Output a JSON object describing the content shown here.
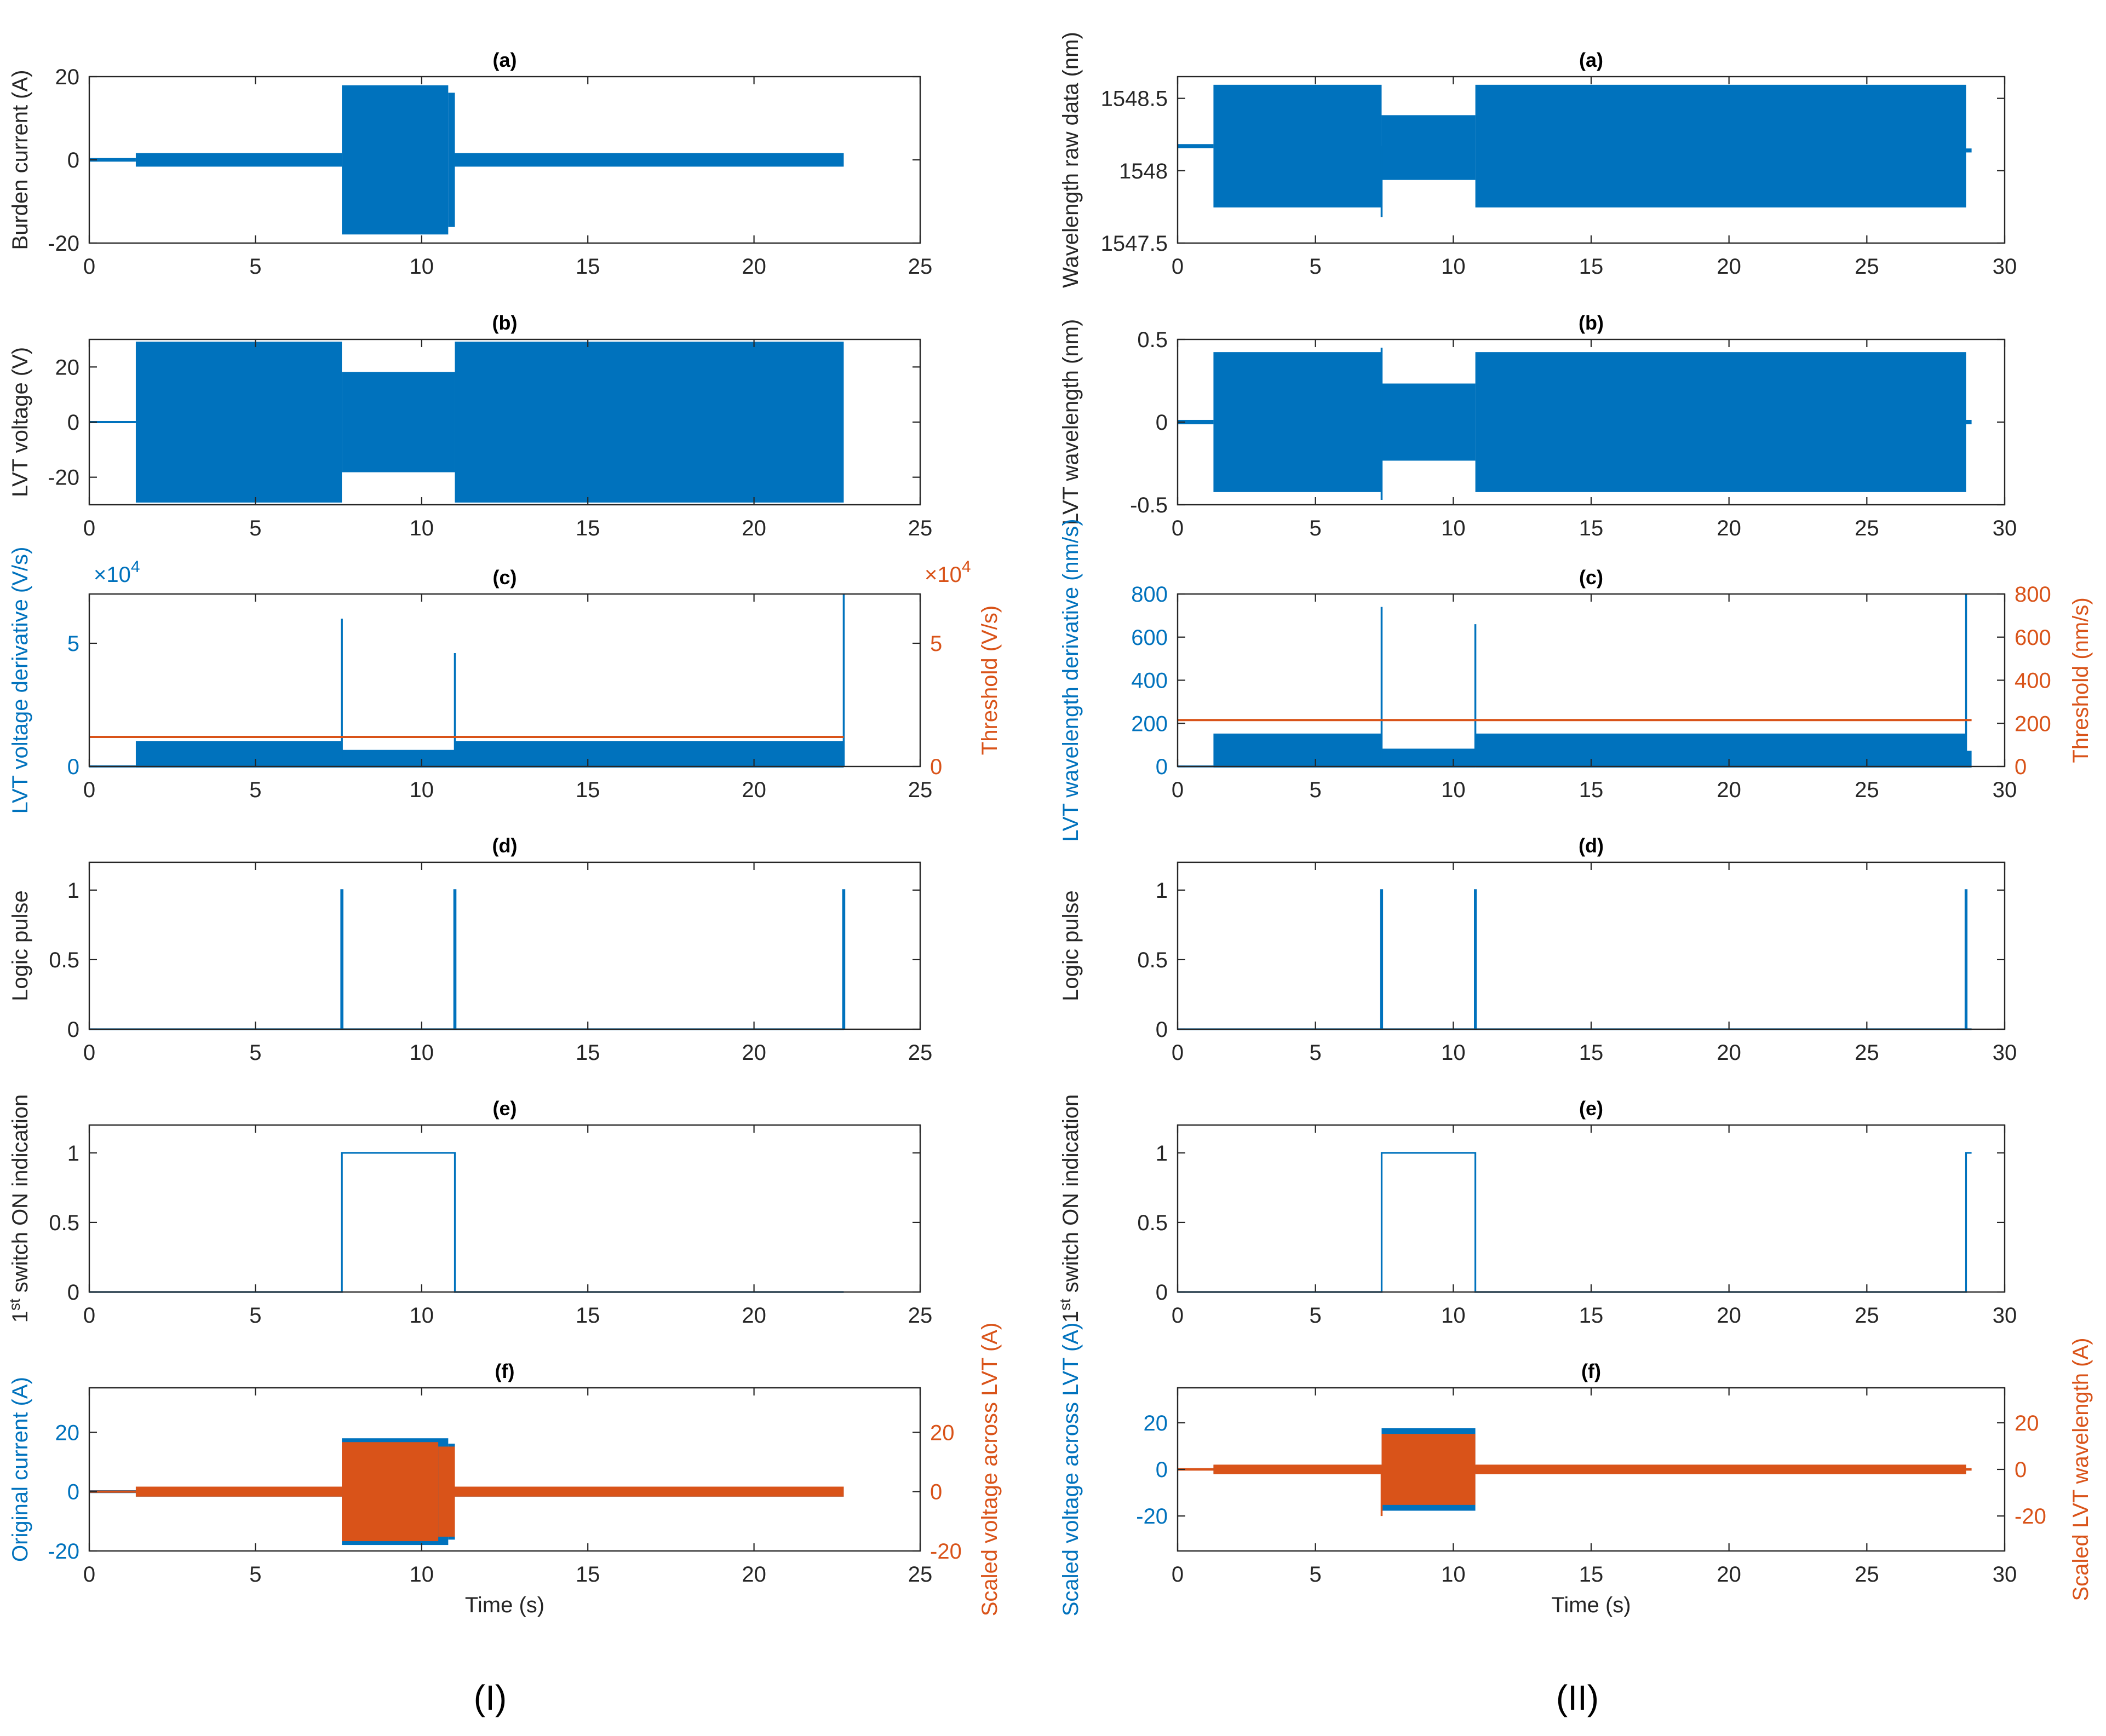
{
  "figure": {
    "panel_labels": {
      "left": "(I)",
      "right": "(II)"
    },
    "colors": {
      "blue": "#0072bd",
      "orange": "#d95319",
      "axis": "#262626",
      "title": "#000000"
    }
  },
  "chart_data": [
    {
      "id": "I-a",
      "type": "line",
      "title": "(a)",
      "xlabel": "",
      "ylabel": "Burden current (A)",
      "xlim": [
        0,
        25
      ],
      "xticks": [
        0,
        5,
        10,
        15,
        20,
        25
      ],
      "ylim": [
        -20,
        20
      ],
      "yticks": [
        -20,
        0,
        20
      ],
      "series": [
        {
          "name": "Burden current",
          "color": "#0072bd",
          "render": "envelope",
          "segments": [
            {
              "x": [
                0,
                1.4
              ],
              "amp": 0.3
            },
            {
              "x": [
                1.4,
                7.6
              ],
              "amp": 1.5
            },
            {
              "x": [
                7.6,
                10.8
              ],
              "amp": 17.8
            },
            {
              "x": [
                10.8,
                11.0
              ],
              "amp": 16
            },
            {
              "x": [
                11.0,
                22.7
              ],
              "amp": 1.5
            }
          ]
        }
      ]
    },
    {
      "id": "I-b",
      "type": "line",
      "title": "(b)",
      "xlabel": "",
      "ylabel": "LVT voltage (V)",
      "xlim": [
        0,
        25
      ],
      "xticks": [
        0,
        5,
        10,
        15,
        20,
        25
      ],
      "ylim": [
        -30,
        30
      ],
      "yticks": [
        -20,
        0,
        20
      ],
      "series": [
        {
          "name": "LVT voltage",
          "color": "#0072bd",
          "render": "envelope",
          "segments": [
            {
              "x": [
                0,
                1.4
              ],
              "amp": 0.2
            },
            {
              "x": [
                1.4,
                7.6
              ],
              "amp": 29
            },
            {
              "x": [
                7.6,
                11.0
              ],
              "amp": 18
            },
            {
              "x": [
                11.0,
                22.7
              ],
              "amp": 29
            }
          ]
        }
      ]
    },
    {
      "id": "I-c",
      "type": "line",
      "title": "(c)",
      "xlabel": "",
      "ylabel": "LVT voltage derivative (V/s)",
      "ylabel_right": "Threshold (V/s)",
      "exponent_left": "×10",
      "exponent_right": "×10",
      "exponent_power": "4",
      "xlim": [
        0,
        25
      ],
      "xticks": [
        0,
        5,
        10,
        15,
        20,
        25
      ],
      "ylim": [
        0,
        7
      ],
      "yticks": [
        0,
        5
      ],
      "ylim_right": [
        0,
        7
      ],
      "yticks_right": [
        0,
        5
      ],
      "series": [
        {
          "name": "LVT voltage derivative",
          "color": "#0072bd",
          "render": "envelope",
          "segments": [
            {
              "x": [
                0,
                1.4
              ],
              "amp": 0.02
            },
            {
              "x": [
                1.4,
                7.6
              ],
              "amp": 1.0
            },
            {
              "x": [
                7.6,
                11.0
              ],
              "amp": 0.65
            },
            {
              "x": [
                11.0,
                22.7
              ],
              "amp": 1.0
            }
          ],
          "spikes": [
            {
              "x": 7.6,
              "y": 6.0
            },
            {
              "x": 11.0,
              "y": 4.6
            },
            {
              "x": 22.7,
              "y": 7.0
            }
          ]
        },
        {
          "name": "Threshold",
          "color": "#d95319",
          "axis": "right",
          "render": "line",
          "x": [
            0,
            22.7
          ],
          "y": [
            1.2,
            1.2
          ]
        }
      ]
    },
    {
      "id": "I-d",
      "type": "line",
      "title": "(d)",
      "xlabel": "",
      "ylabel": "Logic pulse",
      "xlim": [
        0,
        25
      ],
      "xticks": [
        0,
        5,
        10,
        15,
        20,
        25
      ],
      "ylim": [
        0,
        1.2
      ],
      "yticks": [
        0,
        0.5,
        1
      ],
      "series": [
        {
          "name": "Logic pulse",
          "color": "#0072bd",
          "render": "line",
          "x": [
            0,
            7.58,
            7.58,
            7.62,
            7.62,
            10.98,
            10.98,
            11.02,
            11.02,
            22.68,
            22.68,
            22.72,
            22.72
          ],
          "y": [
            0,
            0,
            1,
            1,
            0,
            0,
            1,
            1,
            0,
            0,
            1,
            1,
            0
          ]
        }
      ]
    },
    {
      "id": "I-e",
      "type": "line",
      "title": "(e)",
      "xlabel": "",
      "ylabel": "switch ON indication",
      "ylabel_prefix": "1",
      "ylabel_sup": "st",
      "xlim": [
        0,
        25
      ],
      "xticks": [
        0,
        5,
        10,
        15,
        20,
        25
      ],
      "ylim": [
        0,
        1.2
      ],
      "yticks": [
        0,
        0.5,
        1
      ],
      "series": [
        {
          "name": "1st switch ON indication",
          "color": "#0072bd",
          "render": "line",
          "x": [
            0,
            7.6,
            7.6,
            11.0,
            11.0,
            22.7
          ],
          "y": [
            0,
            0,
            1,
            1,
            0,
            0
          ]
        }
      ]
    },
    {
      "id": "I-f",
      "type": "line",
      "title": "(f)",
      "xlabel": "Time (s)",
      "ylabel": "Original current (A)",
      "ylabel_right": "Scaled voltage across LVT (A)",
      "xlim": [
        0,
        25
      ],
      "xticks": [
        0,
        5,
        10,
        15,
        20,
        25
      ],
      "ylim": [
        -20,
        35
      ],
      "yticks": [
        -20,
        0,
        20
      ],
      "ylim_right": [
        -20,
        35
      ],
      "yticks_right": [
        -20,
        0,
        20
      ],
      "series": [
        {
          "name": "Original current",
          "color": "#0072bd",
          "render": "envelope",
          "segments": [
            {
              "x": [
                0,
                1.4
              ],
              "amp": 0.3
            },
            {
              "x": [
                1.4,
                7.6
              ],
              "amp": 1.5
            },
            {
              "x": [
                7.6,
                10.8
              ],
              "amp": 17.8
            },
            {
              "x": [
                10.8,
                11.0
              ],
              "amp": 16
            },
            {
              "x": [
                11.0,
                22.7
              ],
              "amp": 1.5
            }
          ]
        },
        {
          "name": "Scaled voltage across LVT",
          "color": "#d95319",
          "axis": "right",
          "render": "envelope",
          "segments": [
            {
              "x": [
                0,
                1.4
              ],
              "amp": 0.2
            },
            {
              "x": [
                1.4,
                7.6
              ],
              "amp": 1.5
            },
            {
              "x": [
                7.6,
                10.5
              ],
              "amp": 16.5
            },
            {
              "x": [
                10.5,
                11.0
              ],
              "amp": 15
            },
            {
              "x": [
                11.0,
                22.7
              ],
              "amp": 1.5
            }
          ]
        }
      ]
    },
    {
      "id": "II-a",
      "type": "line",
      "title": "(a)",
      "xlabel": "",
      "ylabel": "Wavelength raw data (nm)",
      "xlim": [
        0,
        30
      ],
      "xticks": [
        0,
        5,
        10,
        15,
        20,
        25,
        30
      ],
      "ylim": [
        1547.5,
        1548.65
      ],
      "yticks": [
        1547.5,
        1548,
        1548.5
      ],
      "series": [
        {
          "name": "Wavelength raw data",
          "color": "#0072bd",
          "render": "envelope",
          "segments": [
            {
              "x": [
                0,
                1.3
              ],
              "lo": 1548.16,
              "hi": 1548.18
            },
            {
              "x": [
                1.3,
                7.4
              ],
              "lo": 1547.75,
              "hi": 1548.59
            },
            {
              "x": [
                7.4,
                10.8
              ],
              "lo": 1547.94,
              "hi": 1548.38
            },
            {
              "x": [
                10.8,
                28.6
              ],
              "lo": 1547.75,
              "hi": 1548.59
            },
            {
              "x": [
                28.6,
                28.8
              ],
              "lo": 1548.13,
              "hi": 1548.15
            }
          ],
          "spikes": [
            {
              "x": 7.4,
              "y": 1547.68
            }
          ]
        }
      ]
    },
    {
      "id": "II-b",
      "type": "line",
      "title": "(b)",
      "xlabel": "",
      "ylabel": "LVT wavelength (nm)",
      "xlim": [
        0,
        30
      ],
      "xticks": [
        0,
        5,
        10,
        15,
        20,
        25,
        30
      ],
      "ylim": [
        -0.5,
        0.5
      ],
      "yticks": [
        -0.5,
        0,
        0.5
      ],
      "series": [
        {
          "name": "LVT wavelength",
          "color": "#0072bd",
          "render": "envelope",
          "segments": [
            {
              "x": [
                0,
                1.3
              ],
              "amp": 0.01
            },
            {
              "x": [
                1.3,
                7.4
              ],
              "amp": 0.42
            },
            {
              "x": [
                7.4,
                10.8
              ],
              "amp": 0.23
            },
            {
              "x": [
                10.8,
                28.6
              ],
              "amp": 0.42
            },
            {
              "x": [
                28.6,
                28.8
              ],
              "amp": 0.01
            }
          ],
          "spikes": [
            {
              "x": 7.4,
              "y": -0.47
            },
            {
              "x": 7.4,
              "y": 0.45
            }
          ]
        }
      ]
    },
    {
      "id": "II-c",
      "type": "line",
      "title": "(c)",
      "xlabel": "",
      "ylabel": "LVT wavelength derivative (nm/s)",
      "ylabel_right": "Threshold (nm/s)",
      "xlim": [
        0,
        30
      ],
      "xticks": [
        0,
        5,
        10,
        15,
        20,
        25,
        30
      ],
      "ylim": [
        0,
        800
      ],
      "yticks": [
        0,
        200,
        400,
        600,
        800
      ],
      "ylim_right": [
        0,
        800
      ],
      "yticks_right": [
        0,
        200,
        400,
        600,
        800
      ],
      "series": [
        {
          "name": "LVT wavelength derivative",
          "color": "#0072bd",
          "render": "envelope",
          "segments": [
            {
              "x": [
                0,
                1.3
              ],
              "amp": 2
            },
            {
              "x": [
                1.3,
                7.4
              ],
              "amp": 150
            },
            {
              "x": [
                7.4,
                10.8
              ],
              "amp": 80
            },
            {
              "x": [
                10.8,
                28.6
              ],
              "amp": 150
            },
            {
              "x": [
                28.6,
                28.8
              ],
              "amp": 70
            }
          ],
          "spikes": [
            {
              "x": 7.4,
              "y": 740
            },
            {
              "x": 10.8,
              "y": 660
            },
            {
              "x": 28.6,
              "y": 800
            }
          ]
        },
        {
          "name": "Threshold",
          "color": "#d95319",
          "axis": "right",
          "render": "line",
          "x": [
            0,
            28.8
          ],
          "y": [
            215,
            215
          ]
        }
      ]
    },
    {
      "id": "II-d",
      "type": "line",
      "title": "(d)",
      "xlabel": "",
      "ylabel": "Logic pulse",
      "xlim": [
        0,
        30
      ],
      "xticks": [
        0,
        5,
        10,
        15,
        20,
        25,
        30
      ],
      "ylim": [
        0,
        1.2
      ],
      "yticks": [
        0,
        0.5,
        1
      ],
      "series": [
        {
          "name": "Logic pulse",
          "color": "#0072bd",
          "render": "line",
          "x": [
            0,
            7.38,
            7.38,
            7.42,
            7.42,
            10.78,
            10.78,
            10.82,
            10.82,
            28.58,
            28.58,
            28.62,
            28.62,
            28.8
          ],
          "y": [
            0,
            0,
            1,
            1,
            0,
            0,
            1,
            1,
            0,
            0,
            1,
            1,
            0,
            0
          ]
        }
      ]
    },
    {
      "id": "II-e",
      "type": "line",
      "title": "(e)",
      "xlabel": "",
      "ylabel": "switch ON indication",
      "ylabel_prefix": "1",
      "ylabel_sup": "st",
      "xlim": [
        0,
        30
      ],
      "xticks": [
        0,
        5,
        10,
        15,
        20,
        25,
        30
      ],
      "ylim": [
        0,
        1.2
      ],
      "yticks": [
        0,
        0.5,
        1
      ],
      "series": [
        {
          "name": "1st switch ON indication",
          "color": "#0072bd",
          "render": "line",
          "x": [
            0,
            7.4,
            7.4,
            10.8,
            10.8,
            28.6,
            28.6,
            28.8
          ],
          "y": [
            0,
            0,
            1,
            1,
            0,
            0,
            1,
            1
          ]
        }
      ]
    },
    {
      "id": "II-f",
      "type": "line",
      "title": "(f)",
      "xlabel": "Time (s)",
      "ylabel": "Scaled voltage across LVT (A)",
      "ylabel_right": "Scaled LVT wavelength (A)",
      "xlim": [
        0,
        30
      ],
      "xticks": [
        0,
        5,
        10,
        15,
        20,
        25,
        30
      ],
      "ylim": [
        -35,
        35
      ],
      "yticks": [
        -20,
        0,
        20
      ],
      "ylim_right": [
        -35,
        35
      ],
      "yticks_right": [
        -20,
        0,
        20
      ],
      "series": [
        {
          "name": "Scaled voltage across LVT",
          "color": "#0072bd",
          "render": "envelope",
          "segments": [
            {
              "x": [
                0,
                1.3
              ],
              "amp": 0.2
            },
            {
              "x": [
                1.3,
                7.4
              ],
              "amp": 1.5
            },
            {
              "x": [
                7.4,
                10.8
              ],
              "amp": 17.5
            },
            {
              "x": [
                10.8,
                28.6
              ],
              "amp": 1.5
            }
          ]
        },
        {
          "name": "Scaled LVT wavelength",
          "color": "#d95319",
          "axis": "right",
          "render": "envelope",
          "segments": [
            {
              "x": [
                0,
                1.3
              ],
              "amp": 0.3
            },
            {
              "x": [
                1.3,
                7.4
              ],
              "amp": 1.8
            },
            {
              "x": [
                7.4,
                10.8
              ],
              "amp": 15
            },
            {
              "x": [
                10.8,
                28.6
              ],
              "amp": 1.8
            },
            {
              "x": [
                28.6,
                28.8
              ],
              "amp": 0.3
            }
          ],
          "spikes": [
            {
              "x": 7.4,
              "y": -20
            }
          ]
        }
      ]
    }
  ]
}
